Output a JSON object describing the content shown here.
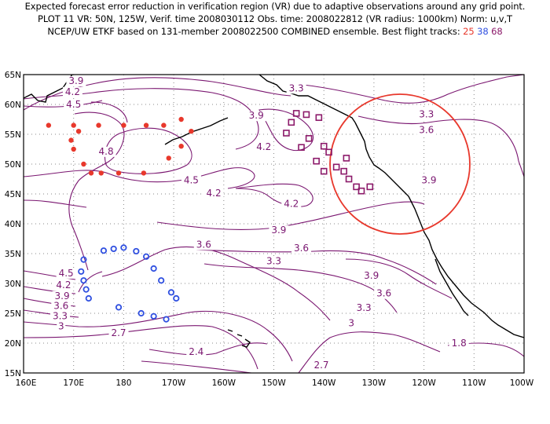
{
  "header": {
    "line1": "Expected forecast error reduction in verification region (VR) due to adaptive observations around any grid point.",
    "line2": "PLOT 11  VR: 50N, 125W, Verif. time 2008030112 Obs. time: 2008022812 (VR radius: 1000km) Norm: u,v,T",
    "line3_prefix": "NCEP/UW ETKF based on 131-member 2008022500 COMBINED ensemble.  Best flight tracks:",
    "track_a": "25",
    "track_b": "38",
    "track_c": "68"
  },
  "map": {
    "lon_range": [
      160,
      260
    ],
    "lat_range": [
      15,
      65
    ],
    "lat_ticks": [
      "15N",
      "20N",
      "25N",
      "30N",
      "35N",
      "40N",
      "45N",
      "50N",
      "55N",
      "60N",
      "65N"
    ],
    "lon_ticks": [
      "160E",
      "170E",
      "180",
      "170W",
      "160W",
      "150W",
      "140W",
      "130W",
      "120W",
      "110W",
      "100W"
    ],
    "colors": {
      "contour": "#7a1670",
      "coast": "#000000",
      "vr_circle": "#e8382c",
      "track_a": "#e8382c",
      "track_b": "#3050e0",
      "track_c": "#8c1a6a",
      "grid": "#888888"
    },
    "contour_labels": [
      {
        "text": "3.9",
        "lon": 170.5,
        "lat": 63.4
      },
      {
        "text": "4.2",
        "lon": 169.8,
        "lat": 61.6
      },
      {
        "text": "4.5",
        "lon": 170.0,
        "lat": 59.5
      },
      {
        "text": "3.3",
        "lon": 214.5,
        "lat": 62.2
      },
      {
        "text": "3.3",
        "lon": 240.5,
        "lat": 57.8
      },
      {
        "text": "3.6",
        "lon": 240.5,
        "lat": 55.2
      },
      {
        "text": "3.9",
        "lon": 206.5,
        "lat": 57.6
      },
      {
        "text": "4.2",
        "lon": 208.0,
        "lat": 52.4
      },
      {
        "text": "4.8",
        "lon": 176.5,
        "lat": 51.6
      },
      {
        "text": "4.5",
        "lon": 193.5,
        "lat": 46.8
      },
      {
        "text": "4.2",
        "lon": 198.0,
        "lat": 44.6
      },
      {
        "text": "4.2",
        "lon": 213.5,
        "lat": 42.8
      },
      {
        "text": "3.9",
        "lon": 241.0,
        "lat": 46.8
      },
      {
        "text": "3.9",
        "lon": 211.0,
        "lat": 38.4
      },
      {
        "text": "3.6",
        "lon": 196.0,
        "lat": 36.0
      },
      {
        "text": "3.6",
        "lon": 215.5,
        "lat": 35.4
      },
      {
        "text": "3.3",
        "lon": 210.0,
        "lat": 33.2
      },
      {
        "text": "3.9",
        "lon": 229.5,
        "lat": 30.8
      },
      {
        "text": "3.6",
        "lon": 232.0,
        "lat": 27.8
      },
      {
        "text": "3.3",
        "lon": 228.0,
        "lat": 25.4
      },
      {
        "text": "4.5",
        "lon": 168.5,
        "lat": 31.2
      },
      {
        "text": "4.2",
        "lon": 168.0,
        "lat": 29.2
      },
      {
        "text": "3.9",
        "lon": 167.7,
        "lat": 27.4
      },
      {
        "text": "3.6",
        "lon": 167.5,
        "lat": 25.7
      },
      {
        "text": "3.3",
        "lon": 167.3,
        "lat": 24.0
      },
      {
        "text": "3",
        "lon": 167.5,
        "lat": 22.3
      },
      {
        "text": "2.7",
        "lon": 179.0,
        "lat": 21.2
      },
      {
        "text": "3",
        "lon": 225.5,
        "lat": 22.8
      },
      {
        "text": "2.4",
        "lon": 194.5,
        "lat": 18.0
      },
      {
        "text": "2.7",
        "lon": 219.5,
        "lat": 15.8
      },
      {
        "text": "1.8",
        "lon": 247.0,
        "lat": 19.5
      }
    ]
  }
}
